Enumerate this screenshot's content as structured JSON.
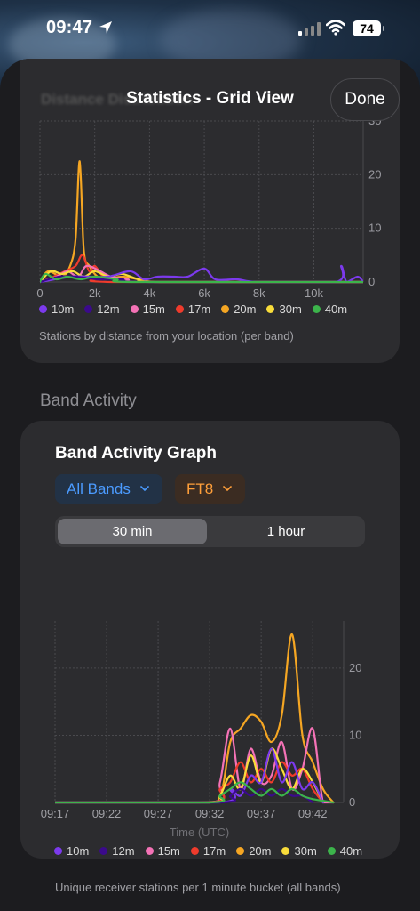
{
  "status_bar": {
    "time": "09:47",
    "battery": "74"
  },
  "sheet": {
    "title": "Statistics - Grid View",
    "done_label": "Done",
    "obscured_section_title": "Distance Distribution"
  },
  "distance_card": {
    "caption": "Stations by distance from your location (per band)"
  },
  "band_activity": {
    "section_title": "Band Activity",
    "card_title": "Band Activity Graph",
    "band_filter": "All Bands",
    "mode_filter": "FT8",
    "segments": [
      {
        "label": "30 min",
        "selected": true
      },
      {
        "label": "1 hour",
        "selected": false
      }
    ],
    "caption": "Unique receiver stations per 1 minute bucket (all bands)"
  },
  "colors": {
    "10m": "#7c3aed",
    "12m": "#3b0a8c",
    "15m": "#f472b6",
    "17m": "#ef3b2c",
    "20m": "#f5a623",
    "30m": "#f8dc3a",
    "40m": "#3cb44b",
    "accent_blue": "#4b9bff",
    "accent_orange": "#ff9f3a"
  },
  "chart_data": [
    {
      "type": "line",
      "title": "",
      "xlabel": "",
      "ylabel": "",
      "x_ticks": [
        "0",
        "2k",
        "4k",
        "6k",
        "8k",
        "10k"
      ],
      "y_ticks": [
        "0",
        "10",
        "20",
        "30"
      ],
      "xlim": [
        0,
        11800
      ],
      "ylim": [
        0,
        30
      ],
      "legend": [
        "10m",
        "12m",
        "15m",
        "17m",
        "20m",
        "30m",
        "40m"
      ],
      "series": [
        {
          "name": "20m",
          "points": [
            [
              0,
              0
            ],
            [
              300,
              2
            ],
            [
              800,
              1
            ],
            [
              1100,
              3
            ],
            [
              1300,
              8
            ],
            [
              1450,
              22.5
            ],
            [
              1600,
              6
            ],
            [
              1800,
              3
            ],
            [
              2100,
              1
            ],
            [
              2400,
              0.5
            ],
            [
              3000,
              1
            ],
            [
              3600,
              0.5
            ],
            [
              4200,
              0
            ],
            [
              6000,
              0
            ],
            [
              11800,
              0
            ]
          ]
        },
        {
          "name": "17m",
          "points": [
            [
              0,
              0
            ],
            [
              500,
              1
            ],
            [
              900,
              2
            ],
            [
              1300,
              3
            ],
            [
              1550,
              5
            ],
            [
              1800,
              2
            ],
            [
              2000,
              3
            ],
            [
              2300,
              1
            ],
            [
              2600,
              0
            ],
            [
              11800,
              0
            ]
          ]
        },
        {
          "name": "15m",
          "points": [
            [
              0,
              0
            ],
            [
              600,
              1
            ],
            [
              1000,
              2
            ],
            [
              1400,
              1
            ],
            [
              1700,
              3
            ],
            [
              2200,
              2
            ],
            [
              2600,
              1
            ],
            [
              3200,
              0.5
            ],
            [
              4000,
              0
            ],
            [
              11800,
              0
            ]
          ]
        },
        {
          "name": "30m",
          "points": [
            [
              0,
              0
            ],
            [
              400,
              2
            ],
            [
              800,
              1.5
            ],
            [
              1200,
              2
            ],
            [
              1600,
              1
            ],
            [
              2000,
              2
            ],
            [
              2500,
              1
            ],
            [
              3000,
              1.5
            ],
            [
              3600,
              0.5
            ],
            [
              4400,
              0
            ],
            [
              11800,
              0
            ]
          ]
        },
        {
          "name": "10m",
          "points": [
            [
              0,
              0
            ],
            [
              1200,
              1
            ],
            [
              1800,
              1
            ],
            [
              2500,
              1
            ],
            [
              3300,
              2
            ],
            [
              3800,
              0.5
            ],
            [
              4300,
              1
            ],
            [
              4900,
              1
            ],
            [
              5400,
              1
            ],
            [
              6000,
              2.5
            ],
            [
              6400,
              0.5
            ],
            [
              7200,
              0.5
            ],
            [
              8000,
              0
            ],
            [
              10800,
              0
            ],
            [
              11000,
              3
            ],
            [
              11200,
              0
            ],
            [
              11600,
              1
            ],
            [
              11800,
              0
            ]
          ]
        },
        {
          "name": "12m",
          "points": [
            [
              0,
              0
            ],
            [
              700,
              1
            ],
            [
              1300,
              1
            ],
            [
              2100,
              0.5
            ],
            [
              3000,
              0.5
            ],
            [
              3800,
              0
            ],
            [
              11800,
              0
            ]
          ]
        },
        {
          "name": "40m",
          "points": [
            [
              0,
              0
            ],
            [
              200,
              1.5
            ],
            [
              600,
              0.5
            ],
            [
              1000,
              1
            ],
            [
              1500,
              0.5
            ],
            [
              2000,
              1
            ],
            [
              2800,
              0.5
            ],
            [
              3500,
              0
            ],
            [
              11800,
              0
            ]
          ]
        }
      ]
    },
    {
      "type": "line",
      "title": "",
      "xlabel": "Time (UTC)",
      "ylabel": "",
      "x_ticks": [
        "09:17",
        "09:22",
        "09:27",
        "09:32",
        "09:37",
        "09:42"
      ],
      "y_ticks": [
        "0",
        "10",
        "20"
      ],
      "xlim": [
        "09:17",
        "09:45"
      ],
      "ylim": [
        0,
        27
      ],
      "legend": [
        "10m",
        "12m",
        "15m",
        "17m",
        "20m",
        "30m",
        "40m"
      ],
      "series": [
        {
          "name": "20m",
          "points": [
            [
              "09:17",
              0
            ],
            [
              "09:31",
              0
            ],
            [
              "09:33",
              1
            ],
            [
              "09:34",
              9
            ],
            [
              "09:35",
              11
            ],
            [
              "09:36",
              13
            ],
            [
              "09:37",
              12
            ],
            [
              "09:38",
              9
            ],
            [
              "09:39",
              13
            ],
            [
              "09:40",
              25
            ],
            [
              "09:41",
              10
            ],
            [
              "09:42",
              6
            ],
            [
              "09:43",
              2
            ],
            [
              "09:44",
              0
            ]
          ]
        },
        {
          "name": "15m",
          "points": [
            [
              "09:17",
              0
            ],
            [
              "09:32",
              0
            ],
            [
              "09:33",
              3
            ],
            [
              "09:34",
              11
            ],
            [
              "09:35",
              2
            ],
            [
              "09:36",
              8
            ],
            [
              "09:37",
              3
            ],
            [
              "09:38",
              4
            ],
            [
              "09:39",
              9
            ],
            [
              "09:40",
              2
            ],
            [
              "09:41",
              5
            ],
            [
              "09:42",
              11
            ],
            [
              "09:43",
              0
            ],
            [
              "09:44",
              0
            ]
          ]
        },
        {
          "name": "17m",
          "points": [
            [
              "09:17",
              0
            ],
            [
              "09:32",
              0
            ],
            [
              "09:33",
              2
            ],
            [
              "09:34",
              3
            ],
            [
              "09:35",
              6
            ],
            [
              "09:36",
              3
            ],
            [
              "09:37",
              5
            ],
            [
              "09:38",
              3
            ],
            [
              "09:39",
              6
            ],
            [
              "09:40",
              4
            ],
            [
              "09:41",
              5
            ],
            [
              "09:42",
              2
            ],
            [
              "09:43",
              0
            ]
          ]
        },
        {
          "name": "30m",
          "points": [
            [
              "09:17",
              0
            ],
            [
              "09:32",
              0
            ],
            [
              "09:33",
              1
            ],
            [
              "09:34",
              4
            ],
            [
              "09:35",
              2
            ],
            [
              "09:36",
              7
            ],
            [
              "09:37",
              3
            ],
            [
              "09:38",
              8
            ],
            [
              "09:39",
              5
            ],
            [
              "09:40",
              2
            ],
            [
              "09:41",
              5
            ],
            [
              "09:42",
              3
            ],
            [
              "09:43",
              0
            ]
          ]
        },
        {
          "name": "10m",
          "points": [
            [
              "09:17",
              0
            ],
            [
              "09:33",
              0
            ],
            [
              "09:34",
              2
            ],
            [
              "09:35",
              1
            ],
            [
              "09:36",
              4
            ],
            [
              "09:37",
              3
            ],
            [
              "09:38",
              8
            ],
            [
              "09:39",
              3
            ],
            [
              "09:40",
              6
            ],
            [
              "09:41",
              2
            ],
            [
              "09:42",
              3
            ],
            [
              "09:43",
              0
            ]
          ]
        },
        {
          "name": "12m",
          "points": [
            [
              "09:17",
              0
            ],
            [
              "09:33",
              0
            ],
            [
              "09:34",
              1
            ],
            [
              "09:35",
              2
            ],
            [
              "09:36",
              1
            ],
            [
              "09:37",
              2
            ],
            [
              "09:38",
              1
            ],
            [
              "09:39",
              2
            ],
            [
              "09:40",
              1
            ],
            [
              "09:41",
              1
            ],
            [
              "09:42",
              0
            ]
          ]
        },
        {
          "name": "40m",
          "points": [
            [
              "09:17",
              0
            ],
            [
              "09:32",
              0
            ],
            [
              "09:33",
              1
            ],
            [
              "09:34",
              2
            ],
            [
              "09:35",
              3
            ],
            [
              "09:36",
              2
            ],
            [
              "09:37",
              1
            ],
            [
              "09:38",
              2
            ],
            [
              "09:39",
              1
            ],
            [
              "09:40",
              2
            ],
            [
              "09:41",
              1
            ],
            [
              "09:42",
              0.5
            ],
            [
              "09:44",
              0
            ]
          ]
        }
      ]
    }
  ]
}
